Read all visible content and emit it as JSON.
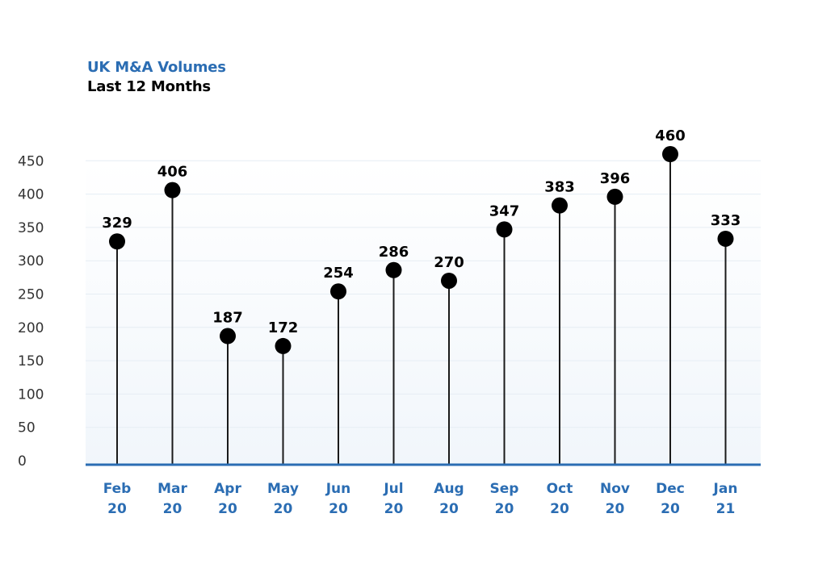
{
  "title": "UK M&A Volumes",
  "subtitle": "Last 12 Months",
  "colors": {
    "accent": "#2b6db3",
    "marker": "#000000",
    "axis": "#2b6db3",
    "grid": "#e6edf4"
  },
  "chart_data": {
    "type": "lollipop",
    "title": "UK M&A Volumes",
    "subtitle": "Last 12 Months",
    "categories": [
      [
        "Feb",
        "20"
      ],
      [
        "Mar",
        "20"
      ],
      [
        "Apr",
        "20"
      ],
      [
        "May",
        "20"
      ],
      [
        "Jun",
        "20"
      ],
      [
        "Jul",
        "20"
      ],
      [
        "Aug",
        "20"
      ],
      [
        "Sep",
        "20"
      ],
      [
        "Oct",
        "20"
      ],
      [
        "Nov",
        "20"
      ],
      [
        "Dec",
        "20"
      ],
      [
        "Jan",
        "21"
      ]
    ],
    "values": [
      329,
      406,
      187,
      172,
      254,
      286,
      270,
      347,
      383,
      396,
      460,
      333
    ],
    "yticks": [
      0,
      50,
      100,
      150,
      200,
      250,
      300,
      350,
      400,
      450
    ],
    "ylim": [
      0,
      450
    ],
    "grid": true,
    "data_labels": true
  }
}
